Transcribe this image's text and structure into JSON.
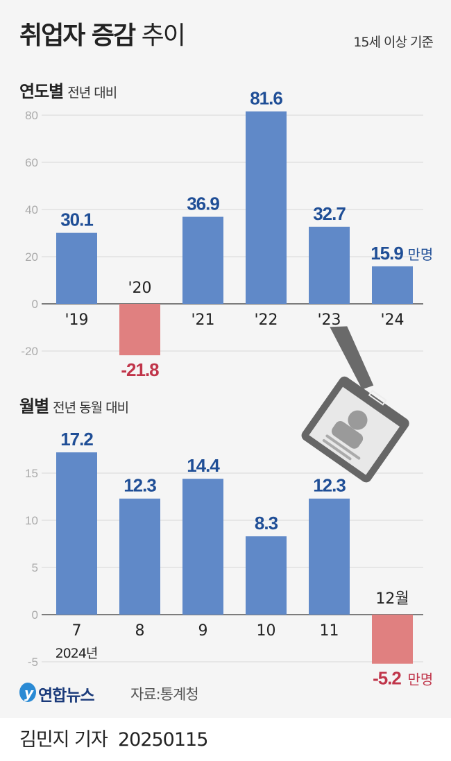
{
  "title": {
    "bold": "취업자 증감",
    "light": "추이"
  },
  "basis": "15세 이상 기준",
  "colors": {
    "positive": "#6089c8",
    "negative": "#e08080",
    "positive_label": "#1f4e96",
    "negative_label": "#c0354a"
  },
  "chart_data": [
    {
      "type": "bar",
      "title": "연도별",
      "subtitle": "전년 대비",
      "categories": [
        "'19",
        "'20",
        "'21",
        "'22",
        "'23",
        "'24"
      ],
      "values": [
        30.1,
        -21.8,
        36.9,
        81.6,
        32.7,
        15.9
      ],
      "value_labels": [
        "30.1",
        "-21.8",
        "36.9",
        "81.6",
        "32.7",
        "15.9"
      ],
      "unit": "만명",
      "yticks": [
        80,
        60,
        40,
        20,
        0,
        -20
      ],
      "ylim": [
        -20,
        80
      ],
      "grid": true
    },
    {
      "type": "bar",
      "title": "월별",
      "subtitle": "전년 동월 대비",
      "categories": [
        "7",
        "8",
        "9",
        "10",
        "11",
        "12월"
      ],
      "year_label": "2024년",
      "values": [
        17.2,
        12.3,
        14.4,
        8.3,
        12.3,
        -5.2
      ],
      "value_labels": [
        "17.2",
        "12.3",
        "14.4",
        "8.3",
        "12.3",
        "-5.2"
      ],
      "unit": "만명",
      "yticks": [
        15,
        10,
        5,
        0,
        -5
      ],
      "ylim": [
        -5,
        17.2
      ],
      "grid": true
    }
  ],
  "source": "자료:통계청",
  "logo": "연합뉴스",
  "byline": "김민지 기자",
  "date": "20250115"
}
